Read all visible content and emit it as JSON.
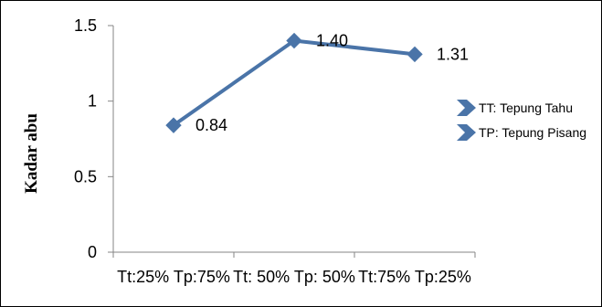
{
  "colors": {
    "series": "#4A74A8",
    "axis": "#868686",
    "text": "#000000"
  },
  "chart_data": {
    "type": "line",
    "categories": [
      "Tt:25% Tp:75%",
      "Tt: 50% Tp: 50%",
      "Tt:75% Tp:25%"
    ],
    "series": [
      {
        "values": [
          0.84,
          1.4,
          1.31
        ]
      }
    ],
    "data_labels": [
      "0.84",
      "1.40",
      "1.31"
    ],
    "ylabel": "Kadar abu",
    "xlabel": "",
    "title": "",
    "ylim": [
      0,
      1.5
    ],
    "yticks": [
      0,
      0.5,
      1,
      1.5
    ],
    "ytick_labels": [
      "0",
      "0.5",
      "1",
      "1.5"
    ],
    "grid": false,
    "marker": "diamond",
    "legend_position": "right",
    "legend": [
      "TT: Tepung Tahu",
      "TP: Tepung Pisang"
    ]
  }
}
